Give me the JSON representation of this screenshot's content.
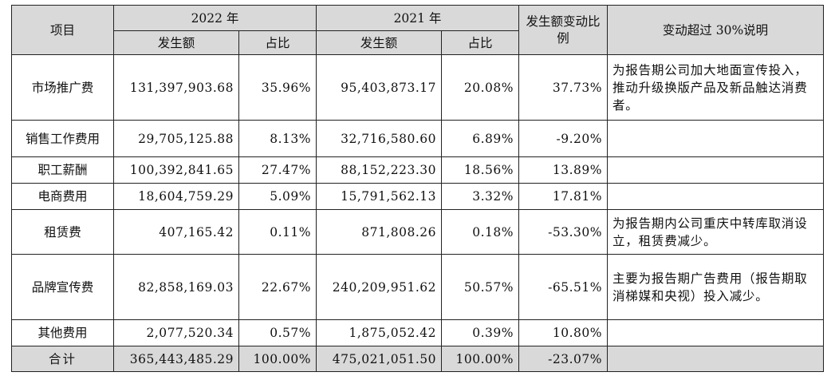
{
  "headers": {
    "item": "项目",
    "y2022": "2022 年",
    "y2021": "2021 年",
    "amount": "发生额",
    "ratio": "占比",
    "change": "发生额变动比例",
    "note": "变动超过 30%说明"
  },
  "rows": [
    {
      "item": "市场推广费",
      "a2022": "131,397,903.68",
      "r2022": "35.96%",
      "a2021": "95,403,873.17",
      "r2021": "20.08%",
      "change": "37.73%",
      "note": "为报告期公司加大地面宣传投入，推动升级换版产品及新品触达消费者。"
    },
    {
      "item": "销售工作费用",
      "a2022": "29,705,125.88",
      "r2022": "8.13%",
      "a2021": "32,716,580.60",
      "r2021": "6.89%",
      "change": "-9.20%",
      "note": ""
    },
    {
      "item": "职工薪酬",
      "a2022": "100,392,841.65",
      "r2022": "27.47%",
      "a2021": "88,152,223.30",
      "r2021": "18.56%",
      "change": "13.89%",
      "note": ""
    },
    {
      "item": "电商费用",
      "a2022": "18,604,759.29",
      "r2022": "5.09%",
      "a2021": "15,791,562.13",
      "r2021": "3.32%",
      "change": "17.81%",
      "note": ""
    },
    {
      "item": "租赁费",
      "a2022": "407,165.42",
      "r2022": "0.11%",
      "a2021": "871,808.26",
      "r2021": "0.18%",
      "change": "-53.30%",
      "note": "为报告期内公司重庆中转库取消设立，租赁费减少。"
    },
    {
      "item": "品牌宣传费",
      "a2022": "82,858,169.03",
      "r2022": "22.67%",
      "a2021": "240,209,951.62",
      "r2021": "50.57%",
      "change": "-65.51%",
      "note": "主要为报告期广告费用（报告期取消梯媒和央视）投入减少。"
    },
    {
      "item": "其他费用",
      "a2022": "2,077,520.34",
      "r2022": "0.57%",
      "a2021": "1,875,052.42",
      "r2021": "0.39%",
      "change": "10.80%",
      "note": ""
    }
  ],
  "total": {
    "item": "合计",
    "a2022": "365,443,485.29",
    "r2022": "100.00%",
    "a2021": "475,021,051.50",
    "r2021": "100.00%",
    "change": "-23.07%",
    "note": ""
  }
}
